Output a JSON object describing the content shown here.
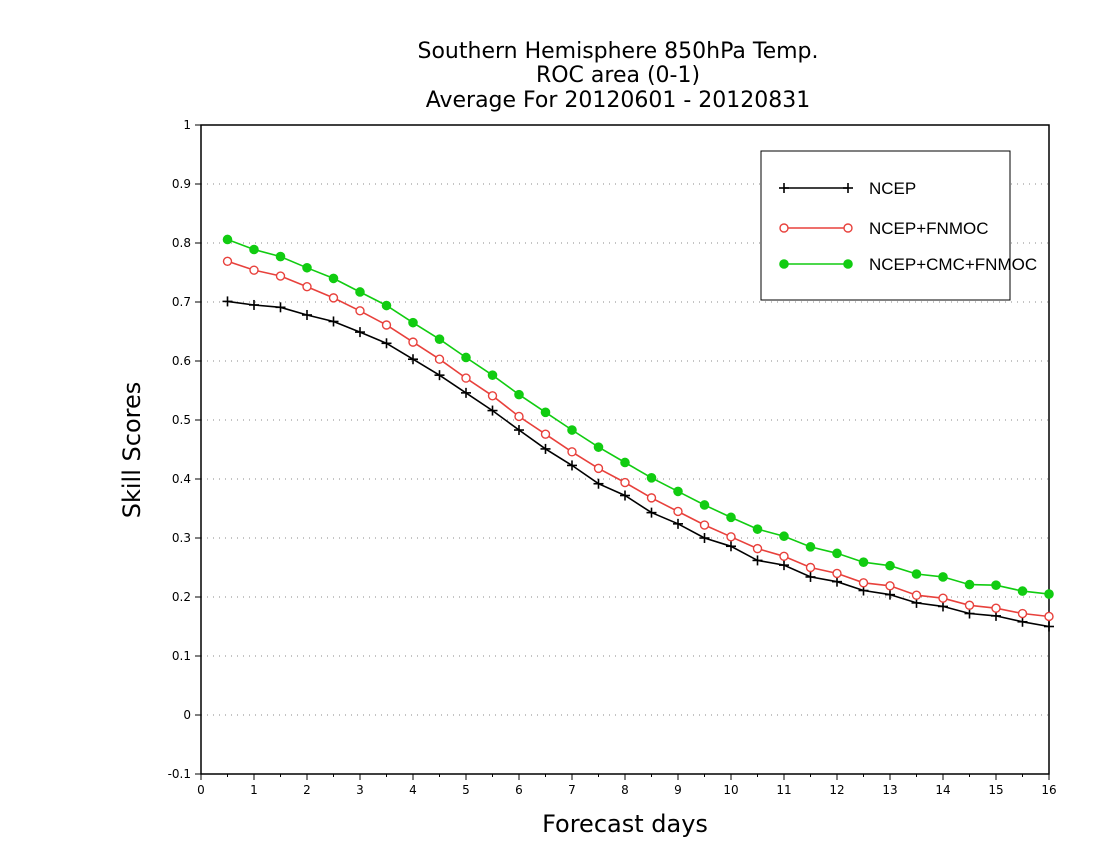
{
  "chart_data": {
    "type": "line",
    "title": [
      "Southern Hemisphere 850hPa Temp.",
      "ROC area (0-1)",
      "Average For 20120601 - 20120831"
    ],
    "xlabel": "Forecast days",
    "ylabel": "Skill Scores",
    "xlim": [
      0,
      16
    ],
    "ylim": [
      -0.1,
      1
    ],
    "xticks": [
      "0",
      "1",
      "2",
      "3",
      "4",
      "5",
      "6",
      "7",
      "8",
      "9",
      "10",
      "11",
      "12",
      "13",
      "14",
      "15",
      "16"
    ],
    "yticks": [
      "-0.1",
      "0",
      "0.1",
      "0.2",
      "0.3",
      "0.4",
      "0.5",
      "0.6",
      "0.7",
      "0.8",
      "0.9",
      "1"
    ],
    "grid": "horizontal dotted",
    "legend_position": "top-right",
    "x": [
      0.5,
      1,
      1.5,
      2,
      2.5,
      3,
      3.5,
      4,
      4.5,
      5,
      5.5,
      6,
      6.5,
      7,
      7.5,
      8,
      8.5,
      9,
      9.5,
      10,
      10.5,
      11,
      11.5,
      12,
      12.5,
      13,
      13.5,
      14,
      14.5,
      15,
      15.5,
      16
    ],
    "series": [
      {
        "name": "NCEP",
        "color": "#000000",
        "marker": "plus",
        "values": [
          0.701,
          0.695,
          0.691,
          0.678,
          0.667,
          0.649,
          0.63,
          0.603,
          0.576,
          0.546,
          0.516,
          0.483,
          0.451,
          0.423,
          0.392,
          0.372,
          0.343,
          0.324,
          0.3,
          0.286,
          0.262,
          0.254,
          0.234,
          0.226,
          0.211,
          0.204,
          0.19,
          0.184,
          0.172,
          0.168,
          0.158,
          0.15
        ]
      },
      {
        "name": "NCEP+FNMOC",
        "color": "#e8413c",
        "marker": "open-circle",
        "values": [
          0.769,
          0.754,
          0.744,
          0.726,
          0.707,
          0.685,
          0.661,
          0.632,
          0.603,
          0.571,
          0.541,
          0.506,
          0.476,
          0.446,
          0.418,
          0.394,
          0.368,
          0.345,
          0.322,
          0.302,
          0.282,
          0.269,
          0.25,
          0.24,
          0.224,
          0.219,
          0.203,
          0.198,
          0.186,
          0.181,
          0.172,
          0.167
        ]
      },
      {
        "name": "NCEP+CMC+FNMOC",
        "color": "#11cc11",
        "marker": "filled-circle",
        "values": [
          0.806,
          0.789,
          0.777,
          0.758,
          0.74,
          0.717,
          0.694,
          0.665,
          0.637,
          0.606,
          0.576,
          0.543,
          0.513,
          0.483,
          0.454,
          0.428,
          0.402,
          0.379,
          0.356,
          0.335,
          0.315,
          0.303,
          0.285,
          0.274,
          0.259,
          0.253,
          0.239,
          0.234,
          0.221,
          0.22,
          0.21,
          0.205
        ]
      }
    ]
  }
}
